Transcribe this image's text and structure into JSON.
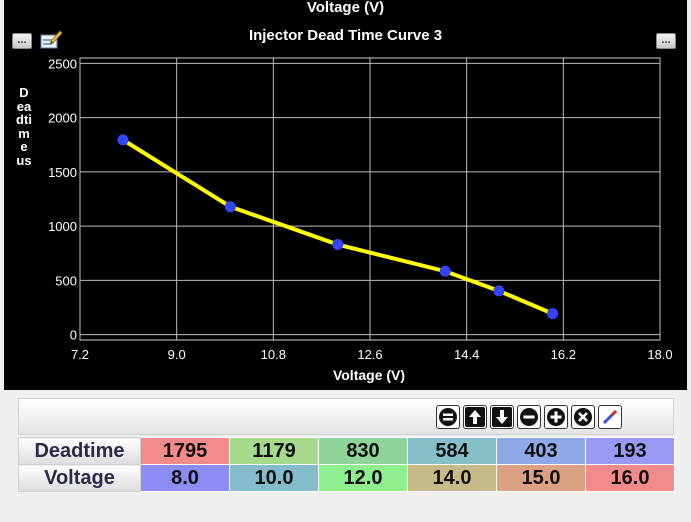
{
  "top_caption": "Voltage (V)",
  "chart_data": {
    "type": "line",
    "title": "Injector Dead Time Curve 3",
    "xlabel": "Voltage (V)",
    "ylabel": "Deadtime us",
    "x": [
      8.0,
      10.0,
      12.0,
      14.0,
      15.0,
      16.0
    ],
    "series": [
      {
        "values": [
          1795,
          1179,
          830,
          584,
          403,
          193
        ]
      }
    ],
    "xlim": [
      7.2,
      18.0
    ],
    "ylim": [
      -50,
      2550
    ],
    "x_ticks": [
      "7.2",
      "9.0",
      "10.8",
      "12.6",
      "14.4",
      "16.2",
      "18.0"
    ],
    "y_ticks": [
      "0",
      "500",
      "1000",
      "1500",
      "2000",
      "2500"
    ],
    "grid": true,
    "background": "#000000",
    "line_color": "#ffff00",
    "point_color": "#3344ff"
  },
  "buttons": {
    "more": "...",
    "more_right": "..."
  },
  "table": {
    "rows": [
      {
        "label": "Deadtime",
        "cells": [
          "1795",
          "1179",
          "830",
          "584",
          "403",
          "193"
        ],
        "colors": [
          "#f28b8b",
          "#a6d98c",
          "#8fd49b",
          "#86bfc9",
          "#8fa8e8",
          "#9999f5"
        ]
      },
      {
        "label": "Voltage",
        "cells": [
          "8.0",
          "10.0",
          "12.0",
          "14.0",
          "15.0",
          "16.0"
        ],
        "colors": [
          "#8c8cf2",
          "#85bccb",
          "#8fef8f",
          "#c7bb8a",
          "#dba183",
          "#f28b8b"
        ]
      }
    ]
  }
}
